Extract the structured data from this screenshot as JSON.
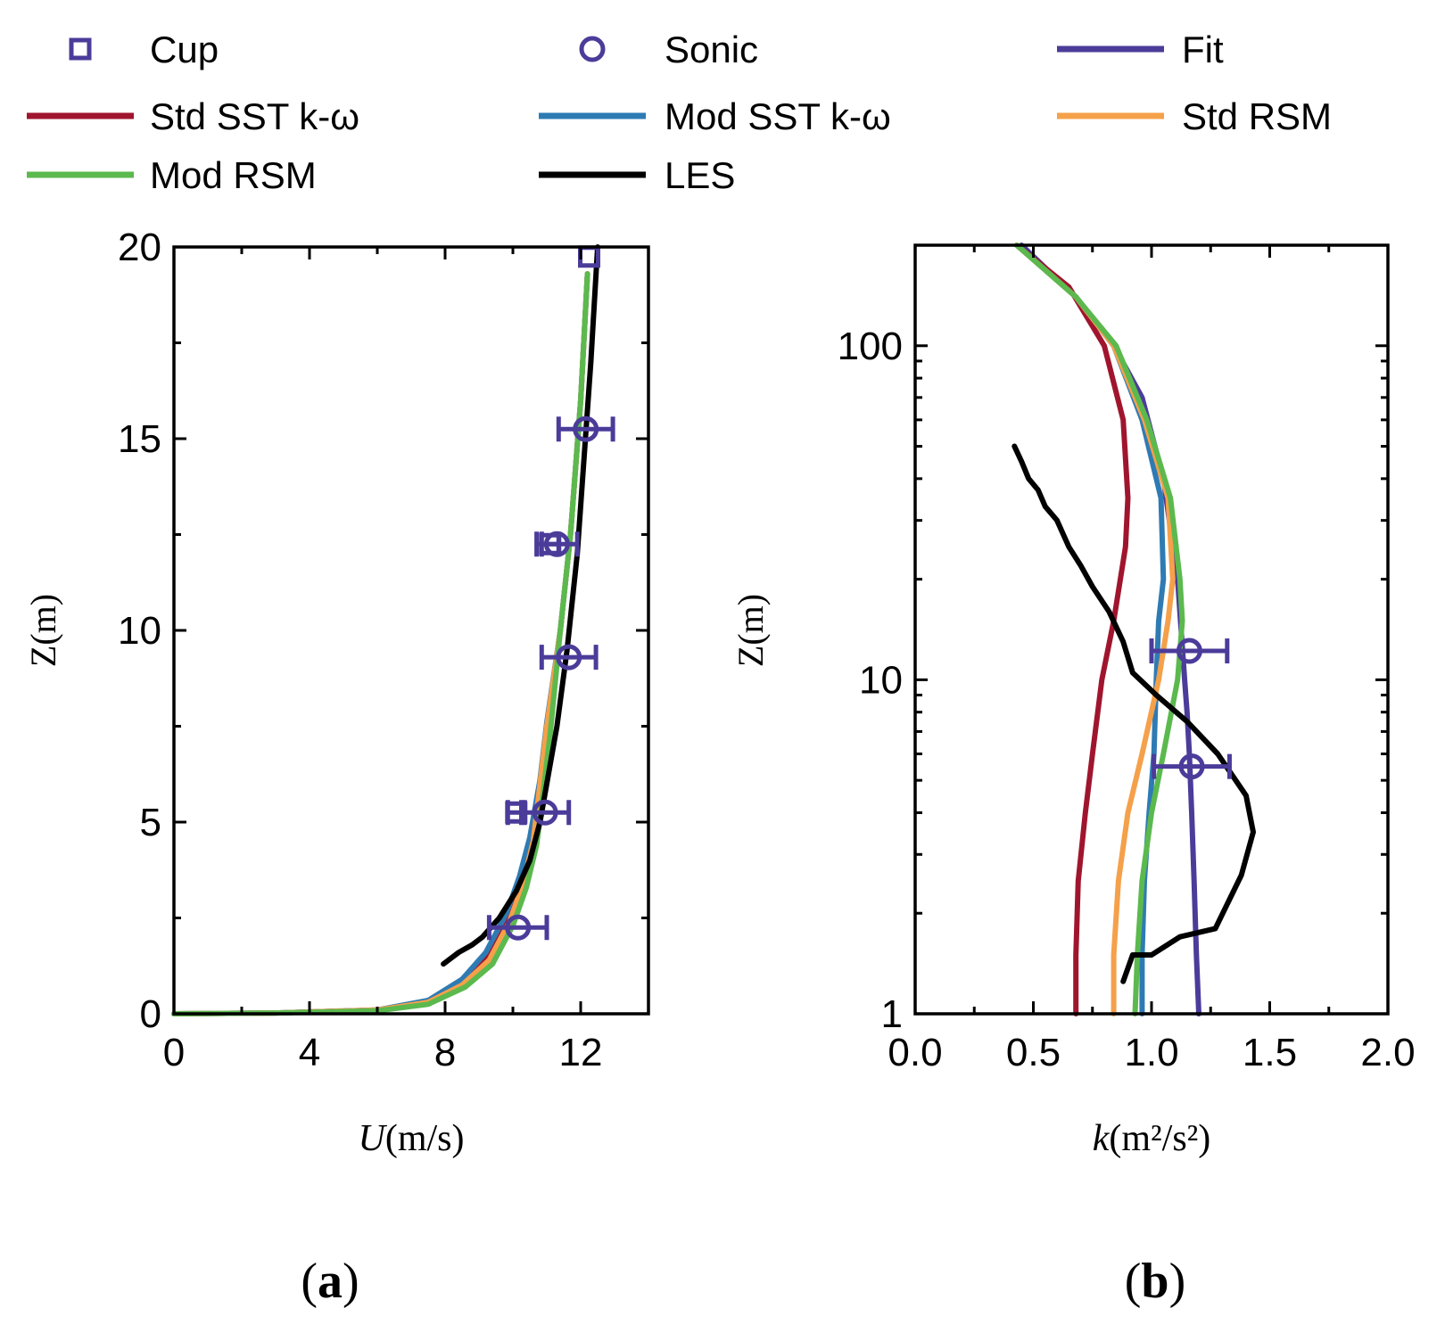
{
  "legend": [
    {
      "label": "Cup",
      "kind": "square-marker",
      "color": "#4B3C9A"
    },
    {
      "label": "Sonic",
      "kind": "circle-marker",
      "color": "#4B3C9A"
    },
    {
      "label": "Fit",
      "kind": "line",
      "color": "#4B3C9A"
    },
    {
      "label": "Std SST k-ω",
      "kind": "line",
      "color": "#A0152E"
    },
    {
      "label": "Mod SST k-ω",
      "kind": "line",
      "color": "#2E7BB4"
    },
    {
      "label": "Std RSM",
      "kind": "line",
      "color": "#F5A04A"
    },
    {
      "label": "Mod RSM",
      "kind": "line",
      "color": "#5BB94E"
    },
    {
      "label": "LES",
      "kind": "line",
      "color": "#000000"
    }
  ],
  "panels": {
    "a": {
      "label_open": "(",
      "label_letter": "a",
      "label_close": ")"
    },
    "b": {
      "label_open": "(",
      "label_letter": "b",
      "label_close": ")"
    }
  },
  "chart_data": [
    {
      "type": "line",
      "panel": "a",
      "xlabel_var": "U",
      "xlabel_unit": "(m/s)",
      "ylabel": "Z(m)",
      "xlim": [
        0,
        14
      ],
      "ylim": [
        0,
        20
      ],
      "yscale": "linear",
      "xticks": [
        0,
        4,
        8,
        12
      ],
      "xtick_labels": [
        "0",
        "4",
        "8",
        "12"
      ],
      "yticks": [
        0,
        5,
        10,
        15,
        20
      ],
      "ytick_labels": [
        "0",
        "5",
        "10",
        "15",
        "20"
      ],
      "series": [
        {
          "name": "Std SST k-ω",
          "color": "#A0152E",
          "x": [
            0,
            3,
            6,
            7.5,
            8.5,
            9.2,
            9.8,
            10.2,
            10.5,
            10.8,
            11.0,
            11.4,
            11.7,
            12.0,
            12.2
          ],
          "y": [
            0,
            0.02,
            0.1,
            0.3,
            0.8,
            1.5,
            2.5,
            3.5,
            4.5,
            6,
            7.5,
            10,
            12.5,
            16,
            19.3
          ]
        },
        {
          "name": "Mod SST k-ω",
          "color": "#2E7BB4",
          "x": [
            0,
            3,
            6,
            7.5,
            8.5,
            9.2,
            9.8,
            10.2,
            10.5,
            10.8,
            11.0,
            11.4,
            11.7,
            12.0,
            12.2
          ],
          "y": [
            0,
            0.02,
            0.1,
            0.35,
            0.9,
            1.6,
            2.6,
            3.6,
            4.6,
            6.1,
            7.6,
            10,
            12.5,
            16,
            19.3
          ]
        },
        {
          "name": "Std RSM",
          "color": "#F5A04A",
          "x": [
            0,
            3,
            6,
            7.5,
            8.5,
            9.3,
            9.9,
            10.3,
            10.6,
            10.8,
            11.0,
            11.4,
            11.7,
            12.0,
            12.2
          ],
          "y": [
            0,
            0.02,
            0.1,
            0.3,
            0.75,
            1.4,
            2.4,
            3.4,
            4.5,
            6,
            7.5,
            10,
            12.5,
            16,
            19.3
          ]
        },
        {
          "name": "Mod RSM",
          "color": "#5BB94E",
          "x": [
            0,
            3,
            6,
            7.5,
            8.6,
            9.4,
            10.0,
            10.4,
            10.7,
            10.9,
            11.1,
            11.4,
            11.7,
            12.0,
            12.2
          ],
          "y": [
            0,
            0.02,
            0.08,
            0.25,
            0.7,
            1.3,
            2.3,
            3.3,
            4.4,
            5.8,
            7.3,
            10,
            12.5,
            16,
            19.3
          ]
        },
        {
          "name": "LES",
          "color": "#000000",
          "x": [
            7.95,
            8.4,
            8.8,
            9.1,
            9.6,
            10.1,
            10.5,
            10.8,
            11.0,
            11.3,
            11.6,
            11.9,
            12.1,
            12.3,
            12.5
          ],
          "y": [
            1.3,
            1.6,
            1.8,
            2.0,
            2.5,
            3.2,
            4.0,
            5.0,
            6.0,
            7.5,
            9.5,
            12.0,
            14.5,
            17.0,
            20.0
          ]
        }
      ],
      "markers": [
        {
          "name": "Cup",
          "shape": "square",
          "color": "#4B3C9A",
          "points": [
            {
              "x": 10.1,
              "y": 5.25,
              "err": 0.25
            },
            {
              "x": 11.1,
              "y": 12.25,
              "err": 0.25
            },
            {
              "x": 12.25,
              "y": 19.75,
              "err": 0.0
            }
          ]
        },
        {
          "name": "Sonic",
          "shape": "circle",
          "color": "#4B3C9A",
          "points": [
            {
              "x": 10.15,
              "y": 2.25,
              "err": 0.85
            },
            {
              "x": 10.95,
              "y": 5.25,
              "err": 0.7
            },
            {
              "x": 11.65,
              "y": 9.3,
              "err": 0.8
            },
            {
              "x": 11.3,
              "y": 12.25,
              "err": 0.6
            },
            {
              "x": 12.15,
              "y": 15.25,
              "err": 0.8
            }
          ]
        }
      ]
    },
    {
      "type": "line",
      "panel": "b",
      "xlabel_var": "k",
      "xlabel_unit": "(m²/s²)",
      "ylabel": "Z(m)",
      "xlim": [
        0.0,
        2.0
      ],
      "ylim": [
        1,
        200
      ],
      "yscale": "log",
      "xticks": [
        0.0,
        0.5,
        1.0,
        1.5,
        2.0
      ],
      "xtick_labels": [
        "0.0",
        "0.5",
        "1.0",
        "1.5",
        "2.0"
      ],
      "yticks": [
        1,
        10,
        100
      ],
      "ytick_labels": [
        "1",
        "10",
        "100"
      ],
      "series": [
        {
          "name": "Fit",
          "color": "#4B3C9A",
          "x": [
            1.2,
            1.19,
            1.18,
            1.17,
            1.16,
            1.15,
            1.14,
            1.11,
            1.05,
            0.96,
            0.84,
            0.68,
            0.45
          ],
          "y": [
            1,
            1.5,
            2.5,
            4,
            6,
            8,
            10,
            20,
            40,
            70,
            100,
            140,
            200
          ]
        },
        {
          "name": "Std SST k-ω",
          "color": "#A0152E",
          "x": [
            0.68,
            0.68,
            0.69,
            0.72,
            0.75,
            0.79,
            0.84,
            0.89,
            0.9,
            0.88,
            0.8,
            0.65,
            0.43
          ],
          "y": [
            1,
            1.5,
            2.5,
            4,
            6,
            10,
            15,
            25,
            35,
            60,
            100,
            150,
            200
          ]
        },
        {
          "name": "Mod SST k-ω",
          "color": "#2E7BB4",
          "x": [
            0.96,
            0.96,
            0.97,
            0.99,
            1.01,
            1.02,
            1.03,
            1.05,
            1.04,
            0.96,
            0.84,
            0.68,
            0.43
          ],
          "y": [
            1,
            1.5,
            2.5,
            4,
            6,
            10,
            15,
            20,
            35,
            60,
            100,
            140,
            200
          ]
        },
        {
          "name": "Std RSM",
          "color": "#F5A04A",
          "x": [
            0.84,
            0.84,
            0.86,
            0.9,
            0.96,
            1.03,
            1.07,
            1.09,
            1.07,
            0.97,
            0.84,
            0.68,
            0.43
          ],
          "y": [
            1,
            1.5,
            2.5,
            4,
            6,
            10,
            15,
            20,
            35,
            60,
            100,
            140,
            200
          ]
        },
        {
          "name": "Mod RSM",
          "color": "#5BB94E",
          "x": [
            0.93,
            0.94,
            0.96,
            1.0,
            1.05,
            1.11,
            1.13,
            1.12,
            1.08,
            0.98,
            0.85,
            0.68,
            0.43
          ],
          "y": [
            1,
            1.5,
            2.5,
            4,
            6,
            10,
            15,
            20,
            35,
            60,
            100,
            140,
            200
          ]
        },
        {
          "name": "LES",
          "color": "#000000",
          "x": [
            0.88,
            0.92,
            1.0,
            1.12,
            1.27,
            1.38,
            1.43,
            1.4,
            1.28,
            1.15,
            1.02,
            0.92,
            0.88,
            0.82,
            0.75,
            0.7,
            0.65,
            0.6,
            0.55,
            0.52,
            0.48,
            0.45,
            0.42
          ],
          "y": [
            1.25,
            1.5,
            1.5,
            1.7,
            1.8,
            2.6,
            3.5,
            4.5,
            6,
            7.5,
            9,
            10.5,
            13,
            16,
            19,
            22,
            25,
            30,
            33,
            37,
            40,
            45,
            50
          ]
        }
      ],
      "markers": [
        {
          "name": "Sonic",
          "shape": "circle",
          "color": "#4B3C9A",
          "points": [
            {
              "x": 1.16,
              "y": 12.2,
              "err": 0.16
            },
            {
              "x": 1.17,
              "y": 5.5,
              "err": 0.16
            }
          ]
        }
      ]
    }
  ]
}
